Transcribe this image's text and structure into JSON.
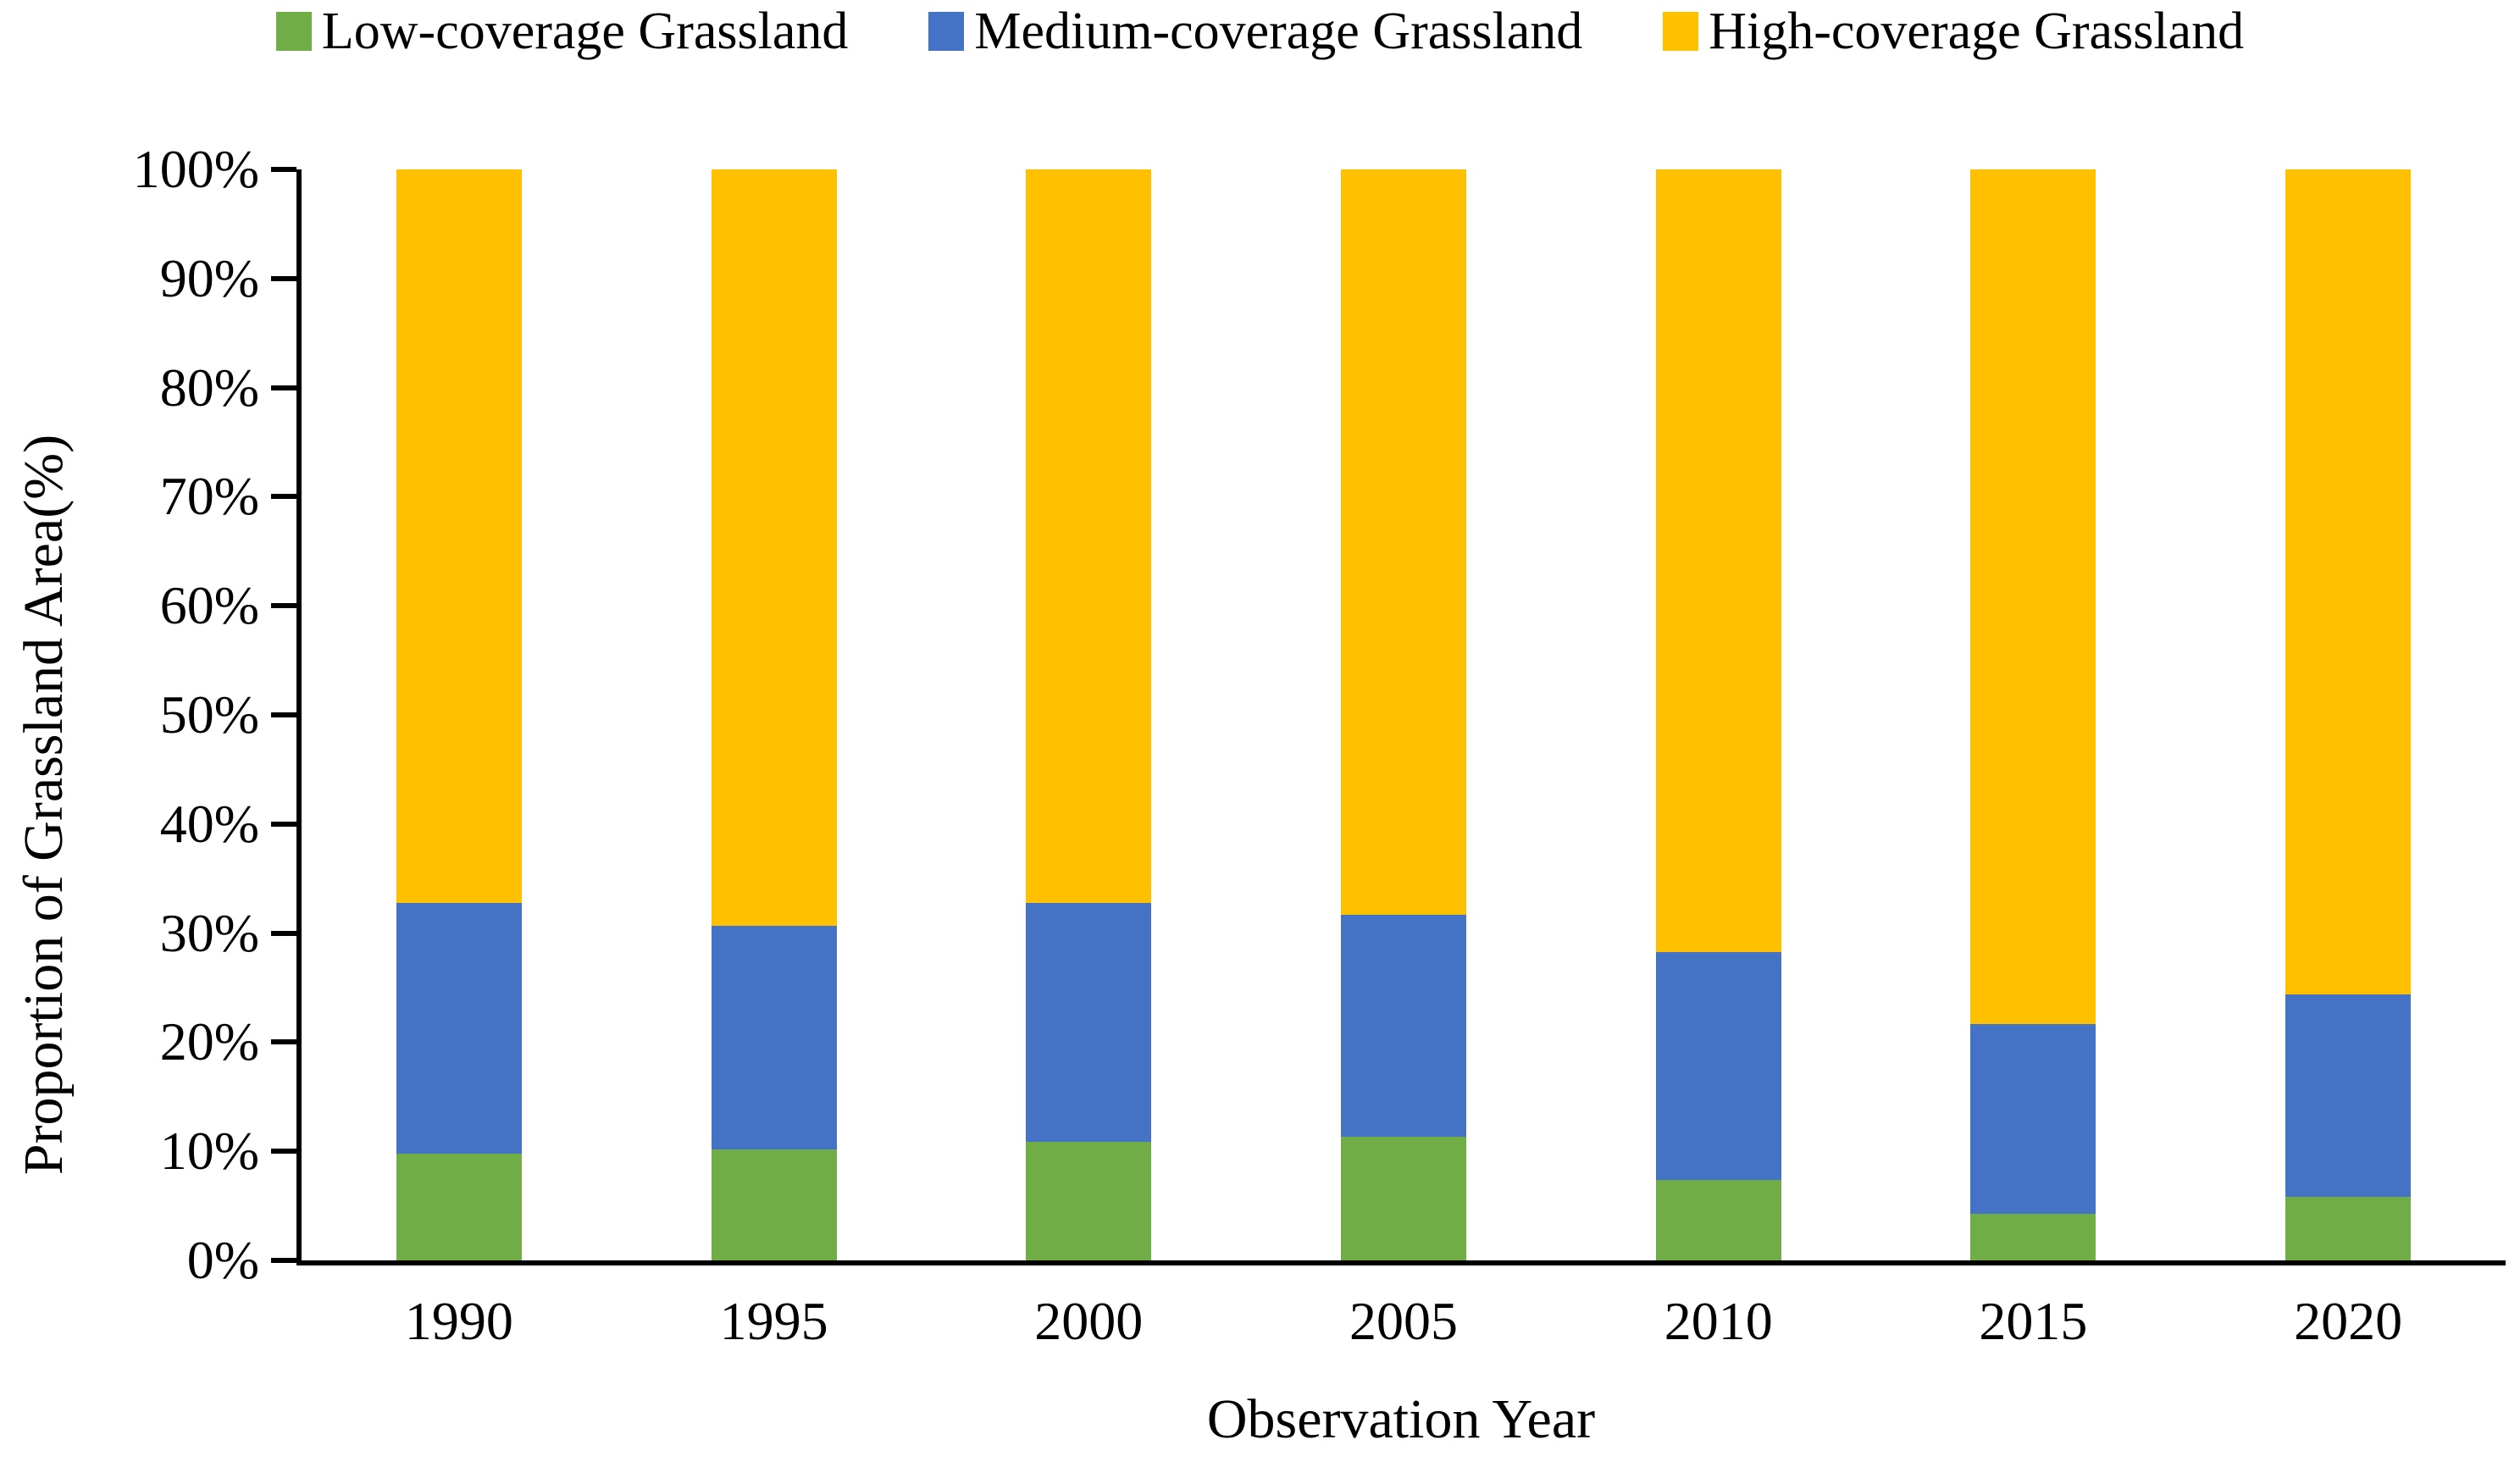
{
  "figure": {
    "background": "#ffffff",
    "axis_color": "#000000"
  },
  "chart_data": {
    "type": "bar",
    "stacked": true,
    "stacked_mode": "percent",
    "title": "",
    "xlabel": "Observation Year",
    "ylabel": "Proportion of Grassland Area(%)",
    "ylim": [
      0,
      100
    ],
    "y_tick_step": 10,
    "y_tick_labels": [
      "0%",
      "10%",
      "20%",
      "30%",
      "40%",
      "50%",
      "60%",
      "70%",
      "80%",
      "90%",
      "100%"
    ],
    "grid": false,
    "legend_position": "top",
    "categories": [
      "1990",
      "1995",
      "2000",
      "2005",
      "2010",
      "2015",
      "2020"
    ],
    "series": [
      {
        "name": "Low-coverage Grassland",
        "color": "#70AD47",
        "values": [
          9.8,
          10.2,
          10.9,
          11.3,
          7.4,
          4.3,
          5.8
        ]
      },
      {
        "name": "Medium-coverage Grassland",
        "color": "#4472C4",
        "values": [
          23.0,
          20.5,
          21.9,
          20.4,
          20.9,
          17.4,
          18.6
        ]
      },
      {
        "name": "High-coverage Grassland",
        "color": "#FFC000",
        "values": [
          67.2,
          69.3,
          67.2,
          68.3,
          71.7,
          78.3,
          75.6
        ]
      }
    ]
  }
}
